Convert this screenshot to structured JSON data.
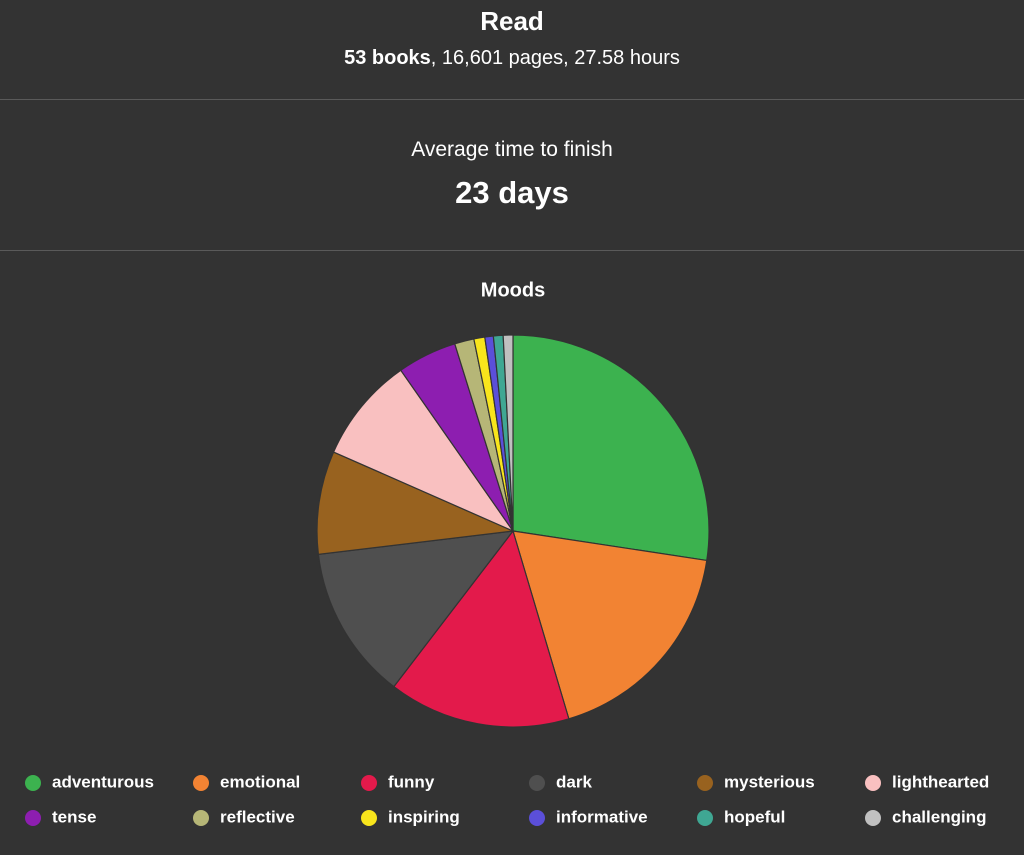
{
  "read": {
    "title": "Read",
    "books": "53 books",
    "details": ", 16,601 pages, 27.58 hours"
  },
  "finish": {
    "label": "Average time to finish",
    "value": "23 days"
  },
  "chart_data": {
    "type": "pie",
    "title": "Moods",
    "categories": [
      "adventurous",
      "emotional",
      "funny",
      "dark",
      "mysterious",
      "lighthearted",
      "tense",
      "reflective",
      "inspiring",
      "informative",
      "hopeful",
      "challenging"
    ],
    "values": [
      27.4,
      18,
      15,
      12.7,
      8.5,
      8.7,
      4.9,
      1.6,
      0.9,
      0.7,
      0.8,
      0.8
    ],
    "colors": [
      "#3cb24f",
      "#f28333",
      "#e31a4b",
      "#4f4f4f",
      "#98621f",
      "#f9c0c0",
      "#8d1eb0",
      "#b6b677",
      "#f8e51c",
      "#5b4fd9",
      "#3fa793",
      "#c0c0c0"
    ]
  }
}
